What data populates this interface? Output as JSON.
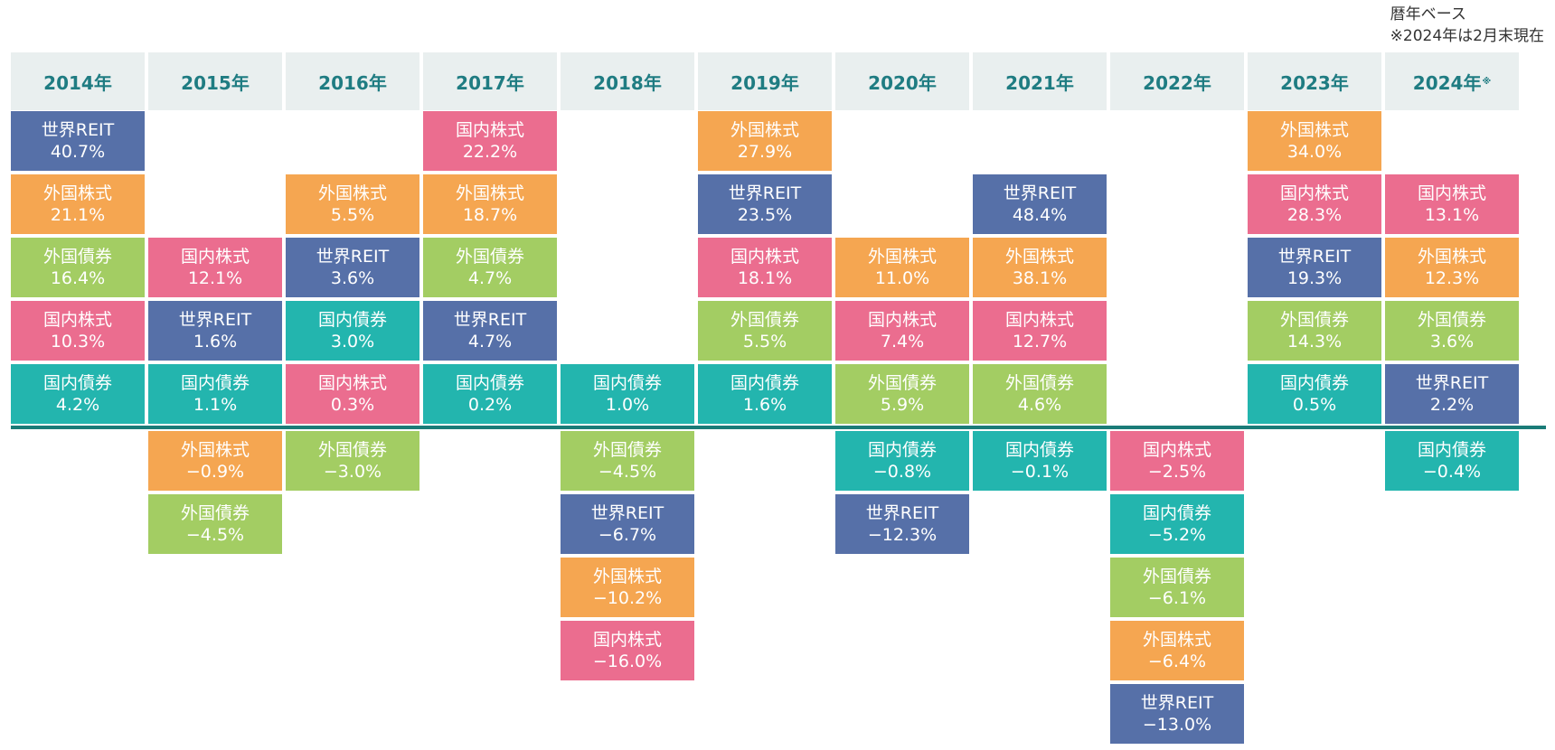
{
  "note": {
    "line1": "暦年ベース",
    "line2": "※2024年は2月末現在"
  },
  "colors": {
    "世界REIT": "#5670a8",
    "外国株式": "#f5a651",
    "外国債券": "#a3cd63",
    "国内株式": "#eb6d8f",
    "国内債券": "#23b5ae",
    "header_bg": "#e9efef",
    "header_text": "#1f7c82",
    "zero_line": "#1a7c78"
  },
  "chart_data": {
    "type": "table",
    "title": "",
    "unit": "%",
    "columns": [
      {
        "year": "2014年",
        "note_mark": "",
        "positive": [
          [
            "世界REIT",
            "40.7%"
          ],
          [
            "外国株式",
            "21.1%"
          ],
          [
            "外国債券",
            "16.4%"
          ],
          [
            "国内株式",
            "10.3%"
          ],
          [
            "国内債券",
            "4.2%"
          ]
        ],
        "negative": []
      },
      {
        "year": "2015年",
        "note_mark": "",
        "positive": [
          [
            "国内株式",
            "12.1%"
          ],
          [
            "世界REIT",
            "1.6%"
          ],
          [
            "国内債券",
            "1.1%"
          ]
        ],
        "negative": [
          [
            "外国株式",
            "−0.9%"
          ],
          [
            "外国債券",
            "−4.5%"
          ]
        ]
      },
      {
        "year": "2016年",
        "note_mark": "",
        "positive": [
          [
            "外国株式",
            "5.5%"
          ],
          [
            "世界REIT",
            "3.6%"
          ],
          [
            "国内債券",
            "3.0%"
          ],
          [
            "国内株式",
            "0.3%"
          ]
        ],
        "negative": [
          [
            "外国債券",
            "−3.0%"
          ]
        ]
      },
      {
        "year": "2017年",
        "note_mark": "",
        "positive": [
          [
            "国内株式",
            "22.2%"
          ],
          [
            "外国株式",
            "18.7%"
          ],
          [
            "外国債券",
            "4.7%"
          ],
          [
            "世界REIT",
            "4.7%"
          ],
          [
            "国内債券",
            "0.2%"
          ]
        ],
        "negative": []
      },
      {
        "year": "2018年",
        "note_mark": "",
        "positive": [
          [
            "国内債券",
            "1.0%"
          ]
        ],
        "negative": [
          [
            "外国債券",
            "−4.5%"
          ],
          [
            "世界REIT",
            "−6.7%"
          ],
          [
            "外国株式",
            "−10.2%"
          ],
          [
            "国内株式",
            "−16.0%"
          ]
        ]
      },
      {
        "year": "2019年",
        "note_mark": "",
        "positive": [
          [
            "外国株式",
            "27.9%"
          ],
          [
            "世界REIT",
            "23.5%"
          ],
          [
            "国内株式",
            "18.1%"
          ],
          [
            "外国債券",
            "5.5%"
          ],
          [
            "国内債券",
            "1.6%"
          ]
        ],
        "negative": []
      },
      {
        "year": "2020年",
        "note_mark": "",
        "positive": [
          [
            "外国株式",
            "11.0%"
          ],
          [
            "国内株式",
            "7.4%"
          ],
          [
            "外国債券",
            "5.9%"
          ]
        ],
        "negative": [
          [
            "国内債券",
            "−0.8%"
          ],
          [
            "世界REIT",
            "−12.3%"
          ]
        ]
      },
      {
        "year": "2021年",
        "note_mark": "",
        "positive": [
          [
            "世界REIT",
            "48.4%"
          ],
          [
            "外国株式",
            "38.1%"
          ],
          [
            "国内株式",
            "12.7%"
          ],
          [
            "外国債券",
            "4.6%"
          ]
        ],
        "negative": [
          [
            "国内債券",
            "−0.1%"
          ]
        ]
      },
      {
        "year": "2022年",
        "note_mark": "",
        "positive": [],
        "negative": [
          [
            "国内株式",
            "−2.5%"
          ],
          [
            "国内債券",
            "−5.2%"
          ],
          [
            "外国債券",
            "−6.1%"
          ],
          [
            "外国株式",
            "−6.4%"
          ],
          [
            "世界REIT",
            "−13.0%"
          ]
        ]
      },
      {
        "year": "2023年",
        "note_mark": "",
        "positive": [
          [
            "外国株式",
            "34.0%"
          ],
          [
            "国内株式",
            "28.3%"
          ],
          [
            "世界REIT",
            "19.3%"
          ],
          [
            "外国債券",
            "14.3%"
          ],
          [
            "国内債券",
            "0.5%"
          ]
        ],
        "negative": []
      },
      {
        "year": "2024年",
        "note_mark": "※",
        "positive": [
          [
            "国内株式",
            "13.1%"
          ],
          [
            "外国株式",
            "12.3%"
          ],
          [
            "外国債券",
            "3.6%"
          ],
          [
            "世界REIT",
            "2.2%"
          ]
        ],
        "negative": [
          [
            "国内債券",
            "−0.4%"
          ]
        ]
      }
    ]
  }
}
